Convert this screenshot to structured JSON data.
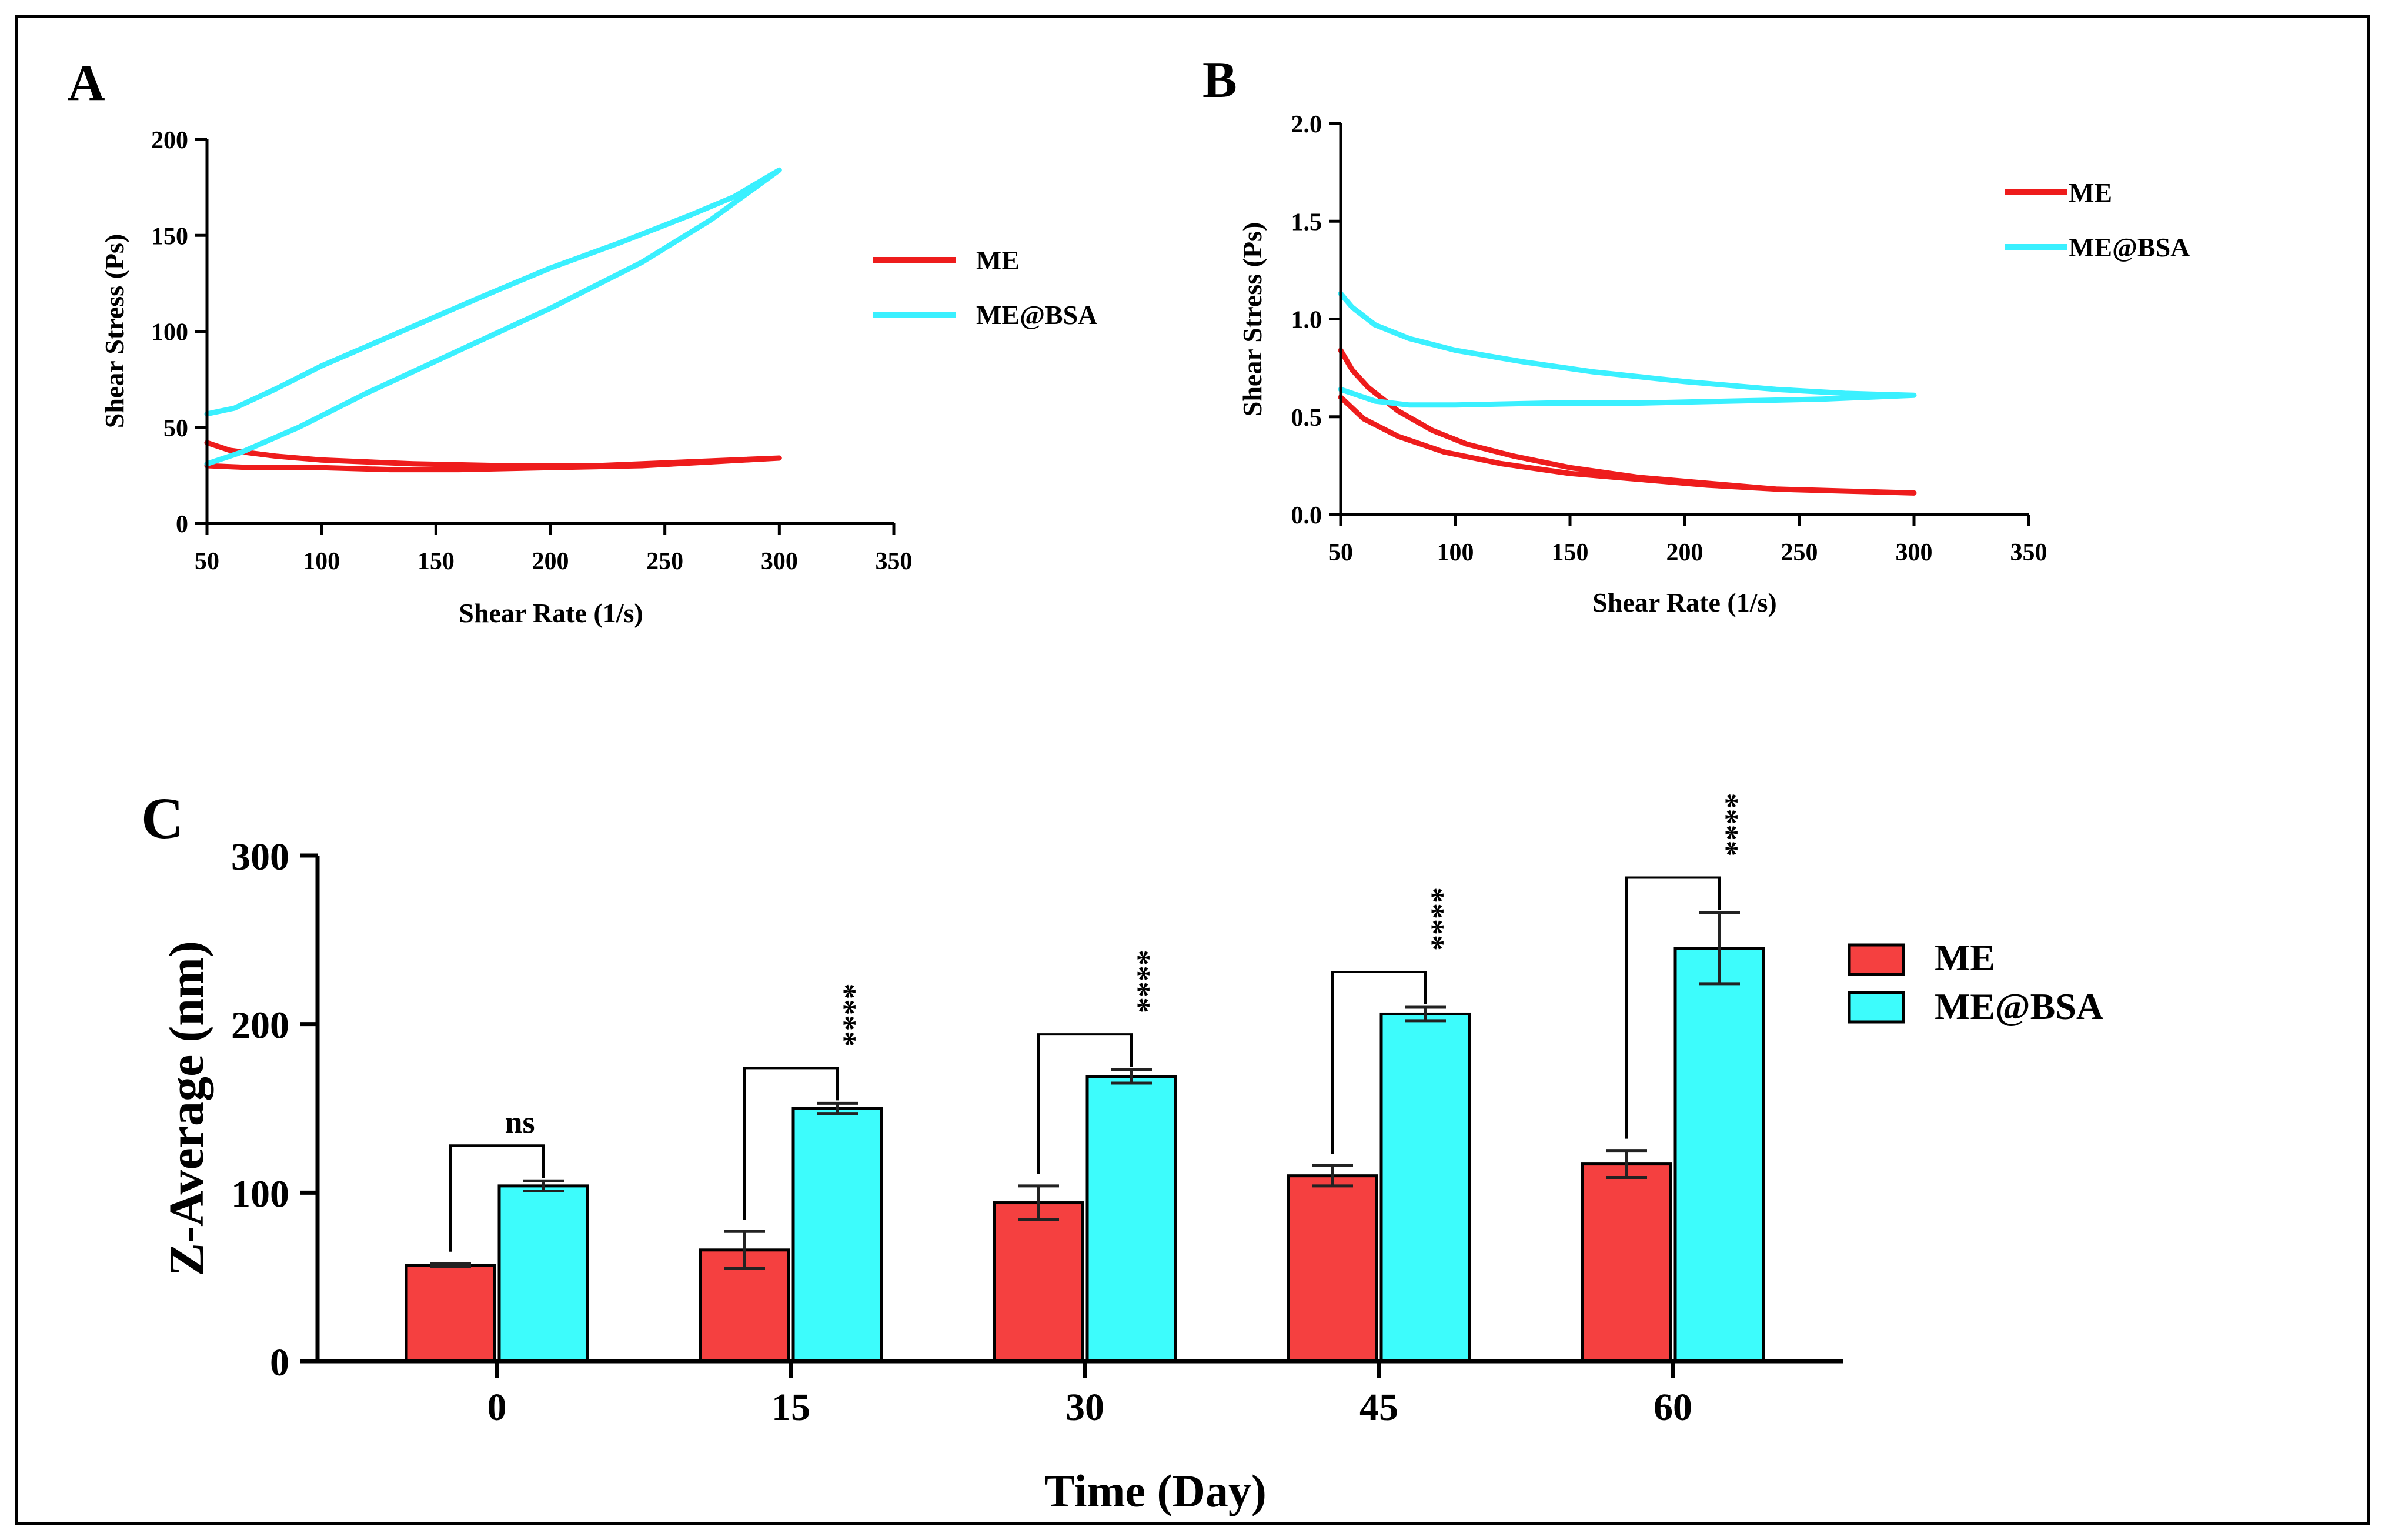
{
  "colors": {
    "me": "#ee1c1c",
    "me_bsa": "#3af0ff",
    "me_bar": "#f54040",
    "me_bsa_bar": "#3dfcfc",
    "axis": "#000000",
    "frame": "#000000"
  },
  "chart_data": [
    {
      "id": "A",
      "type": "line",
      "panel_label": "A",
      "xlabel": "Shear Rate (1/s)",
      "ylabel": "Shear Stress (Ps)",
      "xlim": [
        50,
        350
      ],
      "ylim": [
        0,
        200
      ],
      "xticks": [
        50,
        100,
        150,
        200,
        250,
        300,
        350
      ],
      "yticks": [
        0,
        50,
        100,
        150,
        200
      ],
      "xtick_labels": [
        "50",
        "100",
        "150",
        "200",
        "250",
        "300",
        "350"
      ],
      "ytick_labels": [
        "0",
        "50",
        "100",
        "150",
        "200"
      ],
      "legend": [
        "ME",
        "ME@BSA"
      ],
      "series": [
        {
          "name": "ME",
          "color": "#ee1c1c",
          "x": [
            50,
            60,
            80,
            100,
            140,
            180,
            220,
            260,
            300,
            270,
            240,
            200,
            160,
            130,
            100,
            70,
            50
          ],
          "y": [
            42,
            38,
            35,
            33,
            31,
            30,
            30,
            32,
            34,
            32,
            30,
            29,
            28,
            28,
            29,
            29,
            30
          ]
        },
        {
          "name": "ME@BSA",
          "color": "#3af0ff",
          "x": [
            50,
            62,
            80,
            100,
            135,
            170,
            200,
            230,
            260,
            280,
            300,
            270,
            240,
            200,
            160,
            120,
            90,
            65,
            50
          ],
          "y": [
            57,
            60,
            70,
            82,
            100,
            118,
            133,
            146,
            160,
            170,
            184,
            158,
            136,
            112,
            90,
            68,
            50,
            37,
            31
          ]
        }
      ]
    },
    {
      "id": "B",
      "type": "line",
      "panel_label": "B",
      "xlabel": "Shear Rate (1/s)",
      "ylabel": "Shear Stress (Ps)",
      "xlim": [
        50,
        350
      ],
      "ylim": [
        0,
        2
      ],
      "xticks": [
        50,
        100,
        150,
        200,
        250,
        300,
        350
      ],
      "yticks": [
        0,
        0.5,
        1.0,
        1.5,
        2.0
      ],
      "xtick_labels": [
        "50",
        "100",
        "150",
        "200",
        "250",
        "300",
        "350"
      ],
      "ytick_labels": [
        "0.0",
        "0.5",
        "1.0",
        "1.5",
        "2.0"
      ],
      "legend": [
        "ME",
        "ME@BSA"
      ],
      "series": [
        {
          "name": "ME",
          "color": "#ee1c1c",
          "x": [
            50,
            55,
            62,
            75,
            90,
            105,
            125,
            150,
            180,
            210,
            240,
            270,
            300,
            270,
            240,
            210,
            180,
            150,
            120,
            95,
            75,
            60,
            50
          ],
          "y": [
            0.84,
            0.74,
            0.65,
            0.53,
            0.43,
            0.36,
            0.3,
            0.24,
            0.19,
            0.16,
            0.13,
            0.12,
            0.11,
            0.12,
            0.13,
            0.15,
            0.18,
            0.21,
            0.26,
            0.32,
            0.4,
            0.49,
            0.6
          ]
        },
        {
          "name": "ME@BSA",
          "color": "#3af0ff",
          "x": [
            50,
            55,
            65,
            80,
            100,
            130,
            160,
            200,
            240,
            270,
            300,
            260,
            220,
            180,
            140,
            100,
            80,
            65,
            55,
            50
          ],
          "y": [
            1.13,
            1.06,
            0.97,
            0.9,
            0.84,
            0.78,
            0.73,
            0.68,
            0.64,
            0.62,
            0.61,
            0.59,
            0.58,
            0.57,
            0.57,
            0.56,
            0.56,
            0.58,
            0.62,
            0.64
          ]
        }
      ]
    },
    {
      "id": "C",
      "type": "bar",
      "panel_label": "C",
      "xlabel": "Time (Day)",
      "ylabel": "Z-Average (nm)",
      "ylim": [
        0,
        300
      ],
      "yticks": [
        0,
        100,
        200,
        300
      ],
      "ytick_labels": [
        "0",
        "100",
        "200",
        "300"
      ],
      "categories": [
        "0",
        "15",
        "30",
        "45",
        "60"
      ],
      "legend": [
        "ME",
        "ME@BSA"
      ],
      "series": [
        {
          "name": "ME",
          "color": "#f54040",
          "values": [
            57,
            66,
            94,
            110,
            117
          ],
          "errors": [
            1,
            11,
            10,
            6,
            8
          ]
        },
        {
          "name": "ME@BSA",
          "color": "#3dfcfc",
          "values": [
            104,
            150,
            169,
            206,
            245
          ],
          "errors": [
            3,
            3,
            4,
            4,
            21
          ]
        }
      ],
      "significance": [
        "ns",
        "****",
        "****",
        "****",
        "****"
      ]
    }
  ]
}
